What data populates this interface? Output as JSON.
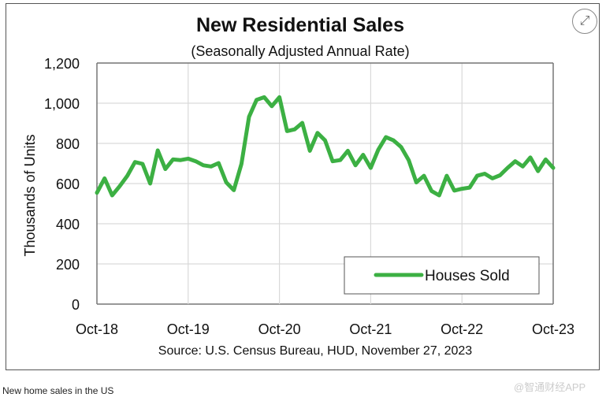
{
  "chart_data": {
    "type": "line",
    "title": "New Residential Sales",
    "subtitle": "(Seasonally Adjusted Annual Rate)",
    "ylabel": "Thousands of Units",
    "xlabel": "",
    "ylim": [
      0,
      1200
    ],
    "yticks": [
      "0",
      "200",
      "400",
      "600",
      "800",
      "1,000",
      "1,200"
    ],
    "xticks": [
      "Oct-18",
      "Oct-19",
      "Oct-20",
      "Oct-21",
      "Oct-22",
      "Oct-23"
    ],
    "grid": true,
    "legend_position": "bottom-right",
    "series": [
      {
        "name": "Houses Sold",
        "color": "#3cb043",
        "values": [
          554,
          626,
          541,
          587,
          639,
          707,
          698,
          600,
          765,
          672,
          720,
          717,
          724,
          711,
          691,
          685,
          702,
          606,
          567,
          698,
          932,
          1017,
          1030,
          985,
          1030,
          861,
          870,
          902,
          763,
          852,
          815,
          711,
          717,
          763,
          691,
          743,
          678,
          769,
          831,
          815,
          782,
          717,
          606,
          639,
          563,
          541,
          639,
          565,
          574,
          580,
          639,
          649,
          626,
          641,
          678,
          711,
          685,
          730,
          662,
          720,
          678
        ]
      }
    ],
    "x_start": "Oct-18",
    "x_end": "Oct-23",
    "frequency": "monthly",
    "source": "Source:  U.S. Census Bureau, HUD, November 27, 2023"
  },
  "caption": "New home sales in the US",
  "watermark": "@智通财经APP",
  "expand_icon": "expand-icon"
}
